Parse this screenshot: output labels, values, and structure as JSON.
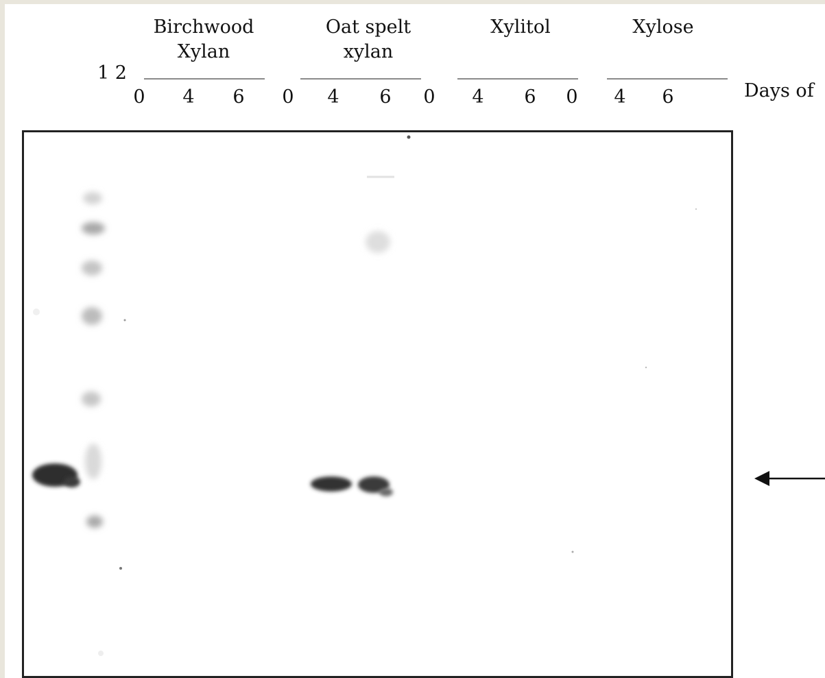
{
  "groups": [
    {
      "title_line1": "Birchwood",
      "title_line2": "Xylan"
    },
    {
      "title_line1": "Oat spelt",
      "title_line2": "xylan"
    },
    {
      "title_line1": "Xylitol",
      "title_line2": ""
    },
    {
      "title_line1": "Xylose",
      "title_line2": ""
    }
  ],
  "lane_label": "1 2",
  "ticks": [
    "0",
    "4",
    "6",
    "0",
    "4",
    "6",
    "0",
    "4",
    "6",
    "0",
    "4",
    "6"
  ],
  "unit_label": "Days of",
  "colors": {
    "band": "#2e2e2e",
    "ladder": "#bdbdbd",
    "frame": "#222222",
    "outer_border": "#e9e6dc"
  },
  "arrow_icon": "left-arrow-icon"
}
